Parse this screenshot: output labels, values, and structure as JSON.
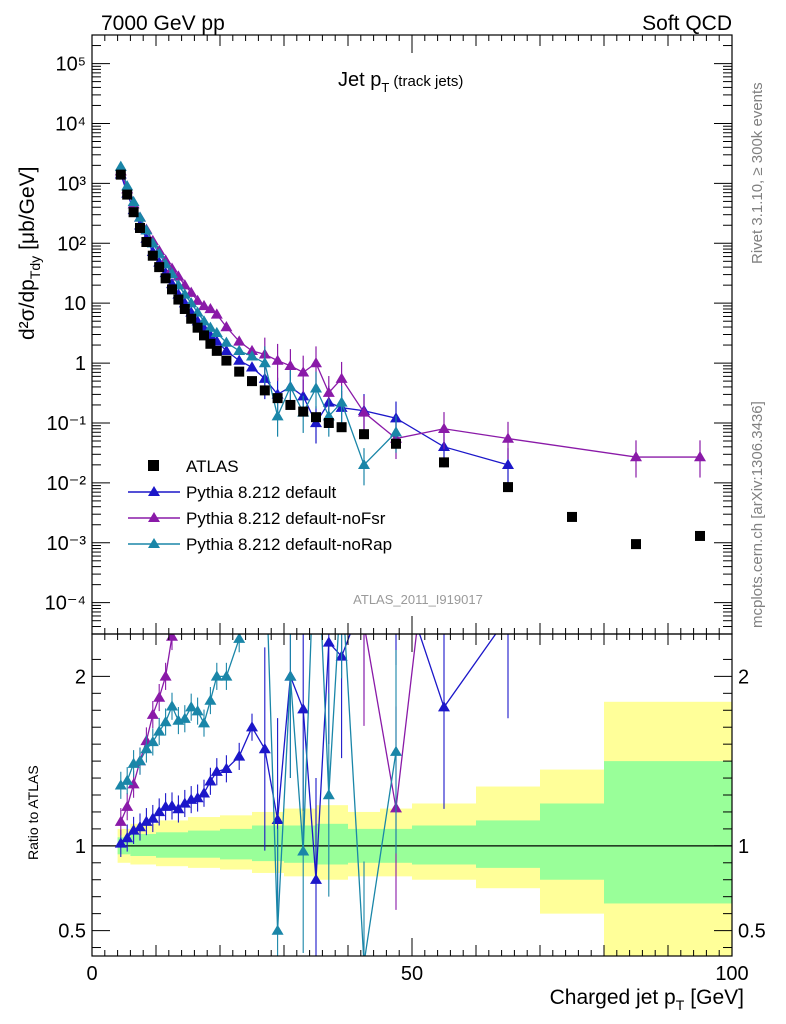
{
  "header": {
    "left": "7000 GeV pp",
    "right": "Soft QCD"
  },
  "side_labels": {
    "top": "Rivet 3.1.10, ≥ 300k events",
    "bottom": "mcplots.cern.ch [arXiv:1306.3436]"
  },
  "analysis_tag": "ATLAS_2011_I919017",
  "chart_data": {
    "type": "scatter",
    "title_main": "Jet p",
    "title_sub": "T",
    "title_extra": "(track jets)",
    "ylabel_top": "d²σ/dp",
    "ylabel_top_sub": "Tdy",
    "ylabel_top_unit": "[μb/GeV]",
    "ylabel_ratio": "Ratio to ATLAS",
    "xlabel_main": "Charged jet p",
    "xlabel_sub": "T",
    "xlabel_unit": "[GeV]",
    "xlim": [
      0,
      100
    ],
    "ylim_top": [
      3e-05,
      300000
    ],
    "ylim_ratio": [
      0.35,
      2.25
    ],
    "y_scale_top": "log",
    "x_ticks": [
      "0",
      "50",
      "100"
    ],
    "ratio_ticks": [
      "0.5",
      "1",
      "2"
    ],
    "top_ticks": [
      "10⁻⁴",
      "10⁻³",
      "10⁻²",
      "10⁻¹",
      "1",
      "10",
      "10²",
      "10³",
      "10⁴",
      "10⁵"
    ],
    "legend": [
      {
        "label": "ATLAS",
        "color": "#000000",
        "marker": "square"
      },
      {
        "label": "Pythia 8.212 default",
        "color": "#1c17c9",
        "marker": "triangle"
      },
      {
        "label": "Pythia 8.212 default-noFsr",
        "color": "#8a1aa8",
        "marker": "triangle"
      },
      {
        "label": "Pythia 8.212 default-noRap",
        "color": "#1a86a8",
        "marker": "triangle"
      }
    ],
    "atlas": {
      "x": [
        4.5,
        5.5,
        6.5,
        7.5,
        8.5,
        9.5,
        10.5,
        11.5,
        12.5,
        13.5,
        14.5,
        15.5,
        16.5,
        17.5,
        18.5,
        19.5,
        21,
        23,
        25,
        27,
        29,
        31,
        33,
        35,
        37,
        39,
        42.5,
        47.5,
        55,
        65,
        75,
        85,
        95
      ],
      "y": [
        1400,
        650,
        330,
        180,
        105,
        62,
        40,
        26,
        17,
        11.5,
        8,
        5.5,
        3.9,
        2.9,
        2.1,
        1.6,
        1.1,
        0.72,
        0.5,
        0.35,
        0.26,
        0.2,
        0.155,
        0.125,
        0.1,
        0.085,
        0.065,
        0.045,
        0.022,
        0.0085,
        0.0027,
        0.00095,
        0.0013
      ]
    },
    "band_bins": [
      {
        "lo": 4,
        "hi": 6,
        "g": [
          0.95,
          1.05
        ],
        "yel": [
          0.9,
          1.1
        ]
      },
      {
        "lo": 6,
        "hi": 10,
        "g": [
          0.94,
          1.07
        ],
        "yel": [
          0.89,
          1.13
        ]
      },
      {
        "lo": 10,
        "hi": 15,
        "g": [
          0.93,
          1.08
        ],
        "yel": [
          0.88,
          1.15
        ]
      },
      {
        "lo": 15,
        "hi": 20,
        "g": [
          0.93,
          1.09
        ],
        "yel": [
          0.87,
          1.17
        ]
      },
      {
        "lo": 20,
        "hi": 25,
        "g": [
          0.92,
          1.1
        ],
        "yel": [
          0.86,
          1.18
        ]
      },
      {
        "lo": 25,
        "hi": 30,
        "g": [
          0.91,
          1.12
        ],
        "yel": [
          0.84,
          1.2
        ]
      },
      {
        "lo": 30,
        "hi": 35,
        "g": [
          0.9,
          1.12
        ],
        "yel": [
          0.82,
          1.22
        ]
      },
      {
        "lo": 35,
        "hi": 40,
        "g": [
          0.89,
          1.13
        ],
        "yel": [
          0.8,
          1.24
        ]
      },
      {
        "lo": 40,
        "hi": 45,
        "g": [
          0.9,
          1.1
        ],
        "yel": [
          0.82,
          1.2
        ]
      },
      {
        "lo": 45,
        "hi": 50,
        "g": [
          0.9,
          1.1
        ],
        "yel": [
          0.82,
          1.22
        ]
      },
      {
        "lo": 50,
        "hi": 60,
        "g": [
          0.89,
          1.12
        ],
        "yel": [
          0.8,
          1.25
        ]
      },
      {
        "lo": 60,
        "hi": 70,
        "g": [
          0.87,
          1.15
        ],
        "yel": [
          0.75,
          1.35
        ]
      },
      {
        "lo": 70,
        "hi": 80,
        "g": [
          0.8,
          1.25
        ],
        "yel": [
          0.6,
          1.45
        ]
      },
      {
        "lo": 80,
        "hi": 90,
        "g": [
          0.66,
          1.5
        ],
        "yel": [
          0.35,
          1.85
        ]
      },
      {
        "lo": 90,
        "hi": 100,
        "g": [
          0.66,
          1.5
        ],
        "yel": [
          0.35,
          1.85
        ]
      }
    ],
    "series": [
      {
        "name": "Pythia 8.212 default",
        "color": "#1c17c9",
        "x": [
          4.5,
          5.5,
          6.5,
          7.5,
          8.5,
          9.5,
          10.5,
          11.5,
          12.5,
          13.5,
          14.5,
          15.5,
          16.5,
          17.5,
          18.5,
          19.5,
          21,
          23,
          25,
          27,
          29,
          31,
          33,
          35,
          37,
          39,
          42.5,
          47.5,
          55,
          65
        ],
        "y": [
          1420,
          680,
          360,
          200,
          120,
          72,
          48,
          32,
          21,
          14,
          10,
          7,
          5,
          3.8,
          2.9,
          2.3,
          1.6,
          1.1,
          0.85,
          0.55,
          0.3,
          0.4,
          0.28,
          0.1,
          0.22,
          0.18,
          0.16,
          0.12,
          0.04,
          0.02
        ]
      },
      {
        "name": "Pythia 8.212 default-noFsr",
        "color": "#8a1aa8",
        "x": [
          4.5,
          5.5,
          6.5,
          7.5,
          8.5,
          9.5,
          10.5,
          11.5,
          12.5,
          13.5,
          14.5,
          15.5,
          16.5,
          17.5,
          18.5,
          19.5,
          21,
          23,
          25,
          27,
          29,
          31,
          33,
          35,
          37,
          39,
          42.5,
          47.5,
          55,
          65,
          85,
          95
        ],
        "y": [
          1600,
          800,
          450,
          270,
          170,
          110,
          75,
          52,
          38,
          28,
          20,
          15,
          11,
          9,
          8,
          6.5,
          4,
          2.3,
          1.6,
          1.4,
          1.1,
          0.9,
          0.7,
          1,
          0.32,
          0.55,
          0.15,
          0.055,
          0.08,
          0.055,
          0.027,
          0.027
        ]
      },
      {
        "name": "Pythia 8.212 default-noRap",
        "color": "#1a86a8",
        "x": [
          4.5,
          5.5,
          6.5,
          7.5,
          8.5,
          9.5,
          10.5,
          11.5,
          12.5,
          13.5,
          14.5,
          15.5,
          16.5,
          17.5,
          18.5,
          19.5,
          21,
          23,
          25,
          27,
          29,
          31,
          33,
          35,
          37,
          39,
          42.5,
          47.5
        ],
        "y": [
          1900,
          900,
          490,
          270,
          165,
          100,
          67,
          45,
          31,
          20,
          14,
          10,
          7,
          5,
          3.9,
          3.2,
          2.2,
          1.6,
          1.3,
          1.0,
          0.13,
          0.4,
          0.15,
          0.38,
          0.13,
          0.22,
          0.02,
          0.07
        ]
      }
    ]
  }
}
